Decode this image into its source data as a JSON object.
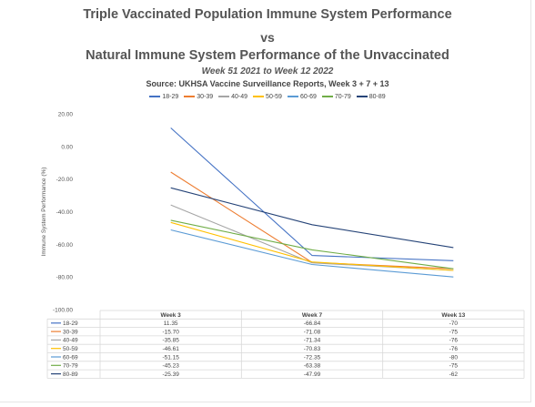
{
  "titles": {
    "line1": "Triple Vaccinated Population Immune System Performance",
    "line2": "vs",
    "line3": "Natural Immune System Performance of the Unvaccinated",
    "subtitle": "Week 51 2021 to Week 12 2022",
    "source": "Source: UKHSA Vaccine Surveillance Reports, Week 3 + 7 + 13"
  },
  "chart_data": {
    "type": "line",
    "title": "Triple Vaccinated Population Immune System Performance vs Natural Immune System Performance of the Unvaccinated",
    "ylabel": "Immune System Performance (%)",
    "xlabel": "",
    "ylim": [
      -100,
      20
    ],
    "y_ticks": [
      "20.00",
      "0.00",
      "-20.00",
      "-40.00",
      "-60.00",
      "-80.00",
      "-100.00"
    ],
    "categories": [
      "Week 3",
      "Week 7",
      "Week 13"
    ],
    "legend_position": "top",
    "grid": false,
    "series": [
      {
        "name": "18-29",
        "color": "#4472c4",
        "values": [
          11.35,
          -66.84,
          -70
        ],
        "labels": [
          "11.35",
          "-66.84",
          "-70"
        ]
      },
      {
        "name": "30-39",
        "color": "#ed7d31",
        "values": [
          -15.7,
          -71.08,
          -75
        ],
        "labels": [
          "-15.70",
          "-71.08",
          "-75"
        ]
      },
      {
        "name": "40-49",
        "color": "#a5a5a5",
        "values": [
          -35.85,
          -71.34,
          -76
        ],
        "labels": [
          "-35.85",
          "-71.34",
          "-76"
        ]
      },
      {
        "name": "50-59",
        "color": "#ffc000",
        "values": [
          -46.61,
          -70.83,
          -76
        ],
        "labels": [
          "-46.61",
          "-70.83",
          "-76"
        ]
      },
      {
        "name": "60-69",
        "color": "#5b9bd5",
        "values": [
          -51.15,
          -72.35,
          -80
        ],
        "labels": [
          "-51.15",
          "-72.35",
          "-80"
        ]
      },
      {
        "name": "70-79",
        "color": "#70ad47",
        "values": [
          -45.23,
          -63.38,
          -75
        ],
        "labels": [
          "-45.23",
          "-63.38",
          "-75"
        ]
      },
      {
        "name": "80-89",
        "color": "#264478",
        "values": [
          -25.39,
          -47.99,
          -62
        ],
        "labels": [
          "-25.39",
          "-47.99",
          "-62"
        ]
      }
    ]
  }
}
